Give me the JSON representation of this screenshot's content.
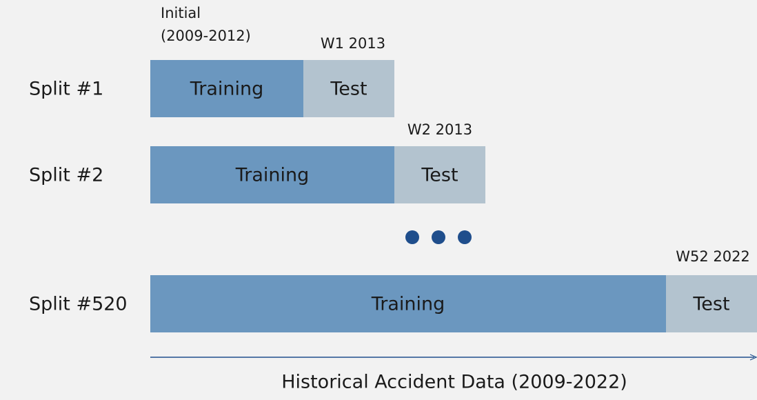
{
  "splits": [
    {
      "label": "Split #1",
      "training": "Training",
      "test": "Test",
      "test_period": "W1 2013"
    },
    {
      "label": "Split #2",
      "training": "Training",
      "test": "Test",
      "test_period": "W2 2013"
    },
    {
      "label": "Split #520",
      "training": "Training",
      "test": "Test",
      "test_period": "W52 2022"
    }
  ],
  "initial_period": [
    "Initial",
    "(2009-2012)"
  ],
  "axis_label": "Historical Accident Data (2009-2022)"
}
